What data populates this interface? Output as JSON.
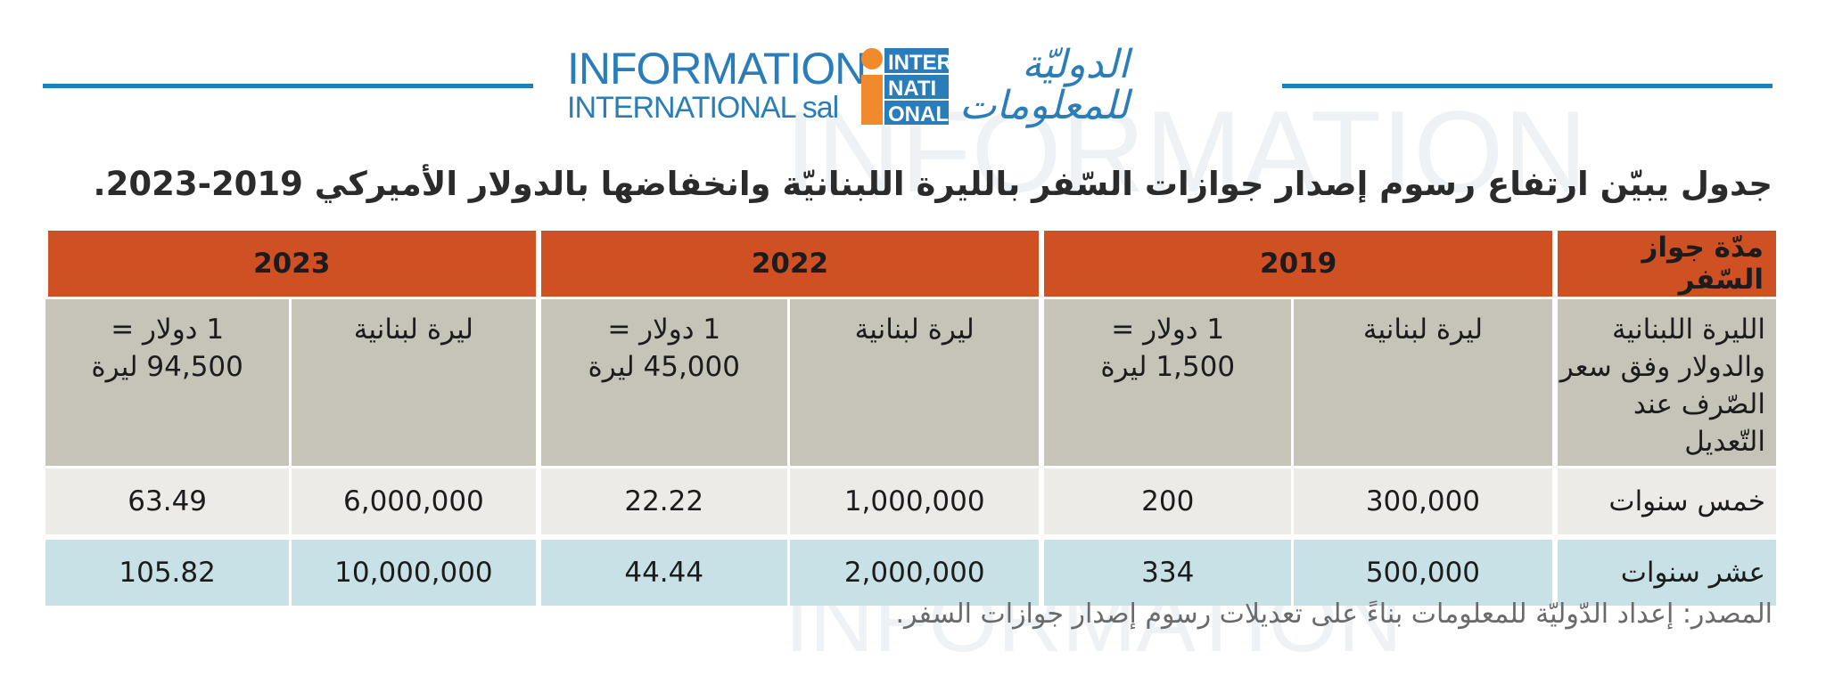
{
  "logo": {
    "en_line1": "INFORMATION",
    "en_line2": "INTERNATIONAL sal",
    "mark_rows": [
      "INTER",
      "NATI",
      "ONAL"
    ],
    "ar_line1": "الدوليّة",
    "ar_line2": "للمعلومات",
    "colors": {
      "blue": "#2a7db8",
      "orange": "#f08a2c"
    }
  },
  "title": "جدول يبيّن ارتفاع رسوم إصدار جوازات السّفر بالليرة اللبنانيّة وانخفاضها بالدولار الأميركي 2019-2023.",
  "table": {
    "label_header": "مدّة جواز السّفر",
    "years": [
      "2019",
      "2022",
      "2023"
    ],
    "subheader_label": [
      "الليرة اللبنانية",
      "والدولار وفق سعر",
      "الصّرف عند التّعديل"
    ],
    "subheaders": [
      {
        "lbp": "ليرة لبنانية",
        "usd_l1": "1 دولار =",
        "usd_l2": "1,500 ليرة"
      },
      {
        "lbp": "ليرة لبنانية",
        "usd_l1": "1 دولار =",
        "usd_l2": "45,000 ليرة"
      },
      {
        "lbp": "ليرة لبنانية",
        "usd_l1": "1 دولار =",
        "usd_l2": "94,500 ليرة"
      }
    ],
    "rows": [
      {
        "label": "خمس سنوات",
        "values": [
          "300,000",
          "200",
          "1,000,000",
          "22.22",
          "6,000,000",
          "63.49"
        ]
      },
      {
        "label": "عشر سنوات",
        "values": [
          "500,000",
          "334",
          "2,000,000",
          "44.44",
          "10,000,000",
          "105.82"
        ]
      }
    ],
    "colors": {
      "header": "#cf5023",
      "subheader": "#c6c3b8",
      "row1": "#ecebe8",
      "row2": "#c8e1e6"
    }
  },
  "source": "المصدر: إعداد الدّوليّة للمعلومات بناءً على تعديلات رسوم إصدار جوازات السفر."
}
